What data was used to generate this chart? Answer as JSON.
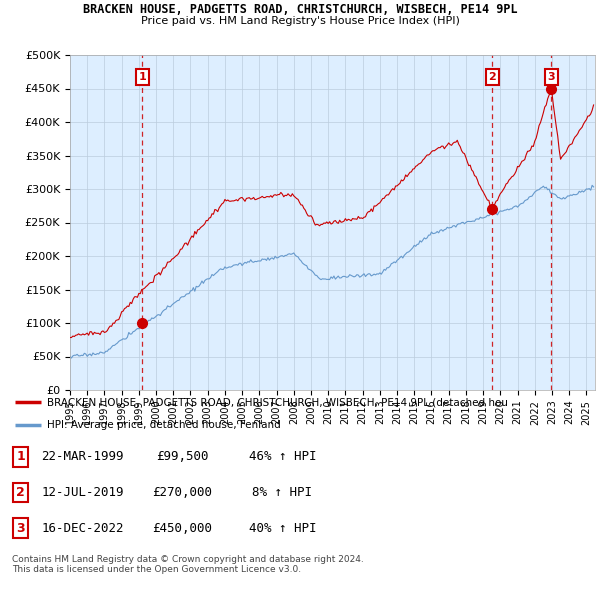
{
  "title": "BRACKEN HOUSE, PADGETTS ROAD, CHRISTCHURCH, WISBECH, PE14 9PL",
  "subtitle": "Price paid vs. HM Land Registry's House Price Index (HPI)",
  "ylim": [
    0,
    500000
  ],
  "yticks": [
    0,
    50000,
    100000,
    150000,
    200000,
    250000,
    300000,
    350000,
    400000,
    450000,
    500000
  ],
  "ytick_labels": [
    "£0",
    "£50K",
    "£100K",
    "£150K",
    "£200K",
    "£250K",
    "£300K",
    "£350K",
    "£400K",
    "£450K",
    "£500K"
  ],
  "sale_nums": [
    1999.21,
    2019.54,
    2022.96
  ],
  "sale_prices": [
    99500,
    270000,
    450000
  ],
  "sale_labels": [
    "1",
    "2",
    "3"
  ],
  "hpi_color": "#6699cc",
  "price_color": "#cc0000",
  "chart_bg_color": "#ddeeff",
  "legend_price_text": "BRACKEN HOUSE, PADGETTS ROAD, CHRISTCHURCH, WISBECH, PE14 9PL (detached hou",
  "legend_hpi_text": "HPI: Average price, detached house, Fenland",
  "table_data": [
    [
      "1",
      "22-MAR-1999",
      "£99,500",
      "46% ↑ HPI"
    ],
    [
      "2",
      "12-JUL-2019",
      "£270,000",
      "8% ↑ HPI"
    ],
    [
      "3",
      "16-DEC-2022",
      "£450,000",
      "40% ↑ HPI"
    ]
  ],
  "footnote1": "Contains HM Land Registry data © Crown copyright and database right 2024.",
  "footnote2": "This data is licensed under the Open Government Licence v3.0.",
  "background_color": "#ffffff",
  "grid_color": "#bbccdd"
}
